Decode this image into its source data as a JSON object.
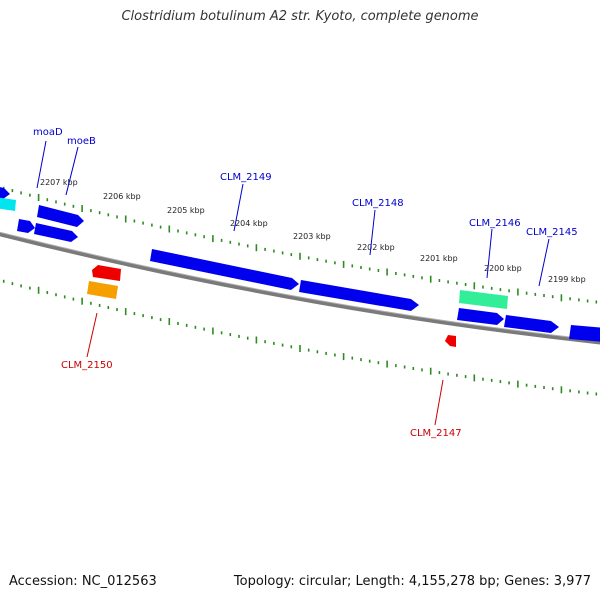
{
  "title": "Clostridium botulinum A2 str. Kyoto, complete genome",
  "footer": {
    "accession": "Accession: NC_012563",
    "summary": "Topology: circular; Length: 4,155,278 bp; Genes: 3,977"
  },
  "ticks": [
    {
      "label": "2207 kbp",
      "kbp": 2207
    },
    {
      "label": "2206 kbp",
      "kbp": 2206
    },
    {
      "label": "2205 kbp",
      "kbp": 2205
    },
    {
      "label": "2204 kbp",
      "kbp": 2204
    },
    {
      "label": "2203 kbp",
      "kbp": 2203
    },
    {
      "label": "2202 kbp",
      "kbp": 2202
    },
    {
      "label": "2201 kbp",
      "kbp": 2201
    },
    {
      "label": "2200 kbp",
      "kbp": 2200
    },
    {
      "label": "2199 kbp",
      "kbp": 2199
    }
  ],
  "gene_labels": [
    {
      "text": "moaD",
      "color": "#0000cc"
    },
    {
      "text": "moeB",
      "color": "#0000cc"
    },
    {
      "text": "CLM_2149",
      "color": "#0000cc"
    },
    {
      "text": "CLM_2148",
      "color": "#0000cc"
    },
    {
      "text": "CLM_2146",
      "color": "#0000cc"
    },
    {
      "text": "CLM_2145",
      "color": "#0000cc"
    },
    {
      "text": "CLM_2150",
      "color": "#cc0000"
    },
    {
      "text": "CLM_2147",
      "color": "#cc0000"
    }
  ],
  "colors": {
    "backbone": "#808080",
    "tick": "#2e8b22",
    "forward_gene": "#0000ee",
    "reverse_gene": "#ee0000",
    "cyan_feature": "#00e5ee",
    "teal_feature": "#33ee99",
    "orange_feature": "#f5a000"
  }
}
